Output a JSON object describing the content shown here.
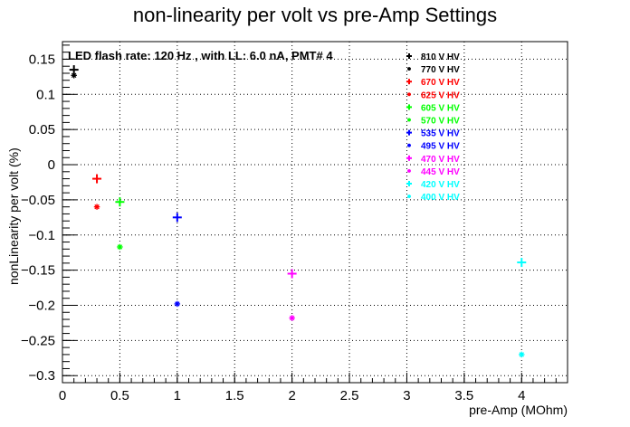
{
  "chart_data": {
    "type": "scatter",
    "title": "non-linearity per volt vs pre-Amp Settings",
    "xlabel": "pre-Amp (MOhm)",
    "ylabel": "nonLinearity per volt (%)",
    "annotation": "LED flash rate: 120 Hz , with LL: 6.0 nA, PMT# 4",
    "xlim": [
      0,
      4.4
    ],
    "ylim": [
      -0.31,
      0.175
    ],
    "grid": true,
    "legend_position": "top-right",
    "x_ticks": [
      {
        "value": 0,
        "label": "0"
      },
      {
        "value": 0.5,
        "label": "0.5"
      },
      {
        "value": 1,
        "label": "1"
      },
      {
        "value": 1.5,
        "label": "1.5"
      },
      {
        "value": 2,
        "label": "2"
      },
      {
        "value": 2.5,
        "label": "2.5"
      },
      {
        "value": 3,
        "label": "3"
      },
      {
        "value": 3.5,
        "label": "3.5"
      },
      {
        "value": 4,
        "label": "4"
      }
    ],
    "y_ticks": [
      {
        "value": 0.15,
        "label": "0.15"
      },
      {
        "value": 0.1,
        "label": "0.1"
      },
      {
        "value": 0.05,
        "label": "0.05"
      },
      {
        "value": 0,
        "label": "0"
      },
      {
        "value": -0.05,
        "label": "−0.05"
      },
      {
        "value": -0.1,
        "label": "−0.1"
      },
      {
        "value": -0.15,
        "label": "−0.15"
      },
      {
        "value": -0.2,
        "label": "−0.2"
      },
      {
        "value": -0.25,
        "label": "−0.25"
      },
      {
        "value": -0.3,
        "label": "−0.3"
      }
    ],
    "series": [
      {
        "name": "810 V HV",
        "color": "#000000",
        "marker": "plus",
        "points": [
          {
            "x": 0.1,
            "y": 0.135
          }
        ]
      },
      {
        "name": "770 V HV",
        "color": "#000000",
        "marker": "star",
        "points": [
          {
            "x": 0.1,
            "y": 0.127
          }
        ]
      },
      {
        "name": "670 V HV",
        "color": "#ff0000",
        "marker": "plus",
        "points": [
          {
            "x": 0.3,
            "y": -0.02
          }
        ]
      },
      {
        "name": "625 V HV",
        "color": "#ff0000",
        "marker": "star",
        "points": [
          {
            "x": 0.3,
            "y": -0.06
          }
        ]
      },
      {
        "name": "605 V HV",
        "color": "#00ff00",
        "marker": "plus",
        "points": [
          {
            "x": 0.5,
            "y": -0.053
          }
        ]
      },
      {
        "name": "570 V HV",
        "color": "#00ff00",
        "marker": "star",
        "points": [
          {
            "x": 0.5,
            "y": -0.117
          }
        ]
      },
      {
        "name": "535 V HV",
        "color": "#0000ff",
        "marker": "plus",
        "points": [
          {
            "x": 1.0,
            "y": -0.075
          }
        ]
      },
      {
        "name": "495 V HV",
        "color": "#0000ff",
        "marker": "star",
        "points": [
          {
            "x": 1.0,
            "y": -0.198
          }
        ]
      },
      {
        "name": "470 V HV",
        "color": "#ff00ff",
        "marker": "plus",
        "points": [
          {
            "x": 2.0,
            "y": -0.155
          }
        ]
      },
      {
        "name": "445 V HV",
        "color": "#ff00ff",
        "marker": "star",
        "points": [
          {
            "x": 2.0,
            "y": -0.218
          }
        ]
      },
      {
        "name": "420 V HV",
        "color": "#00ffff",
        "marker": "plus",
        "points": [
          {
            "x": 4.0,
            "y": -0.139
          }
        ]
      },
      {
        "name": "400 V HV",
        "color": "#00ffff",
        "marker": "star",
        "points": [
          {
            "x": 4.0,
            "y": -0.27
          }
        ]
      }
    ]
  }
}
